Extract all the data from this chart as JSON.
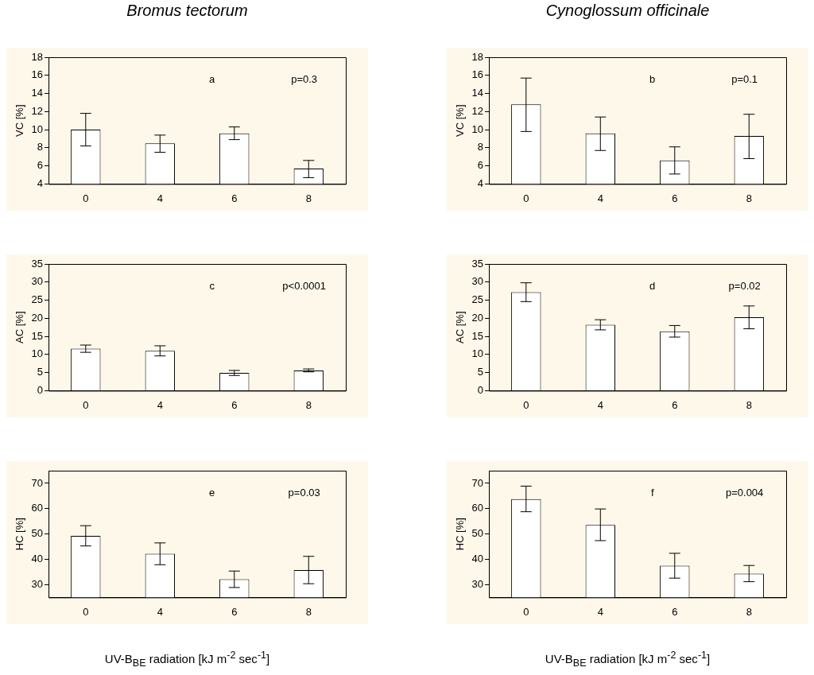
{
  "chart_data": [
    {
      "type": "bar",
      "title": "Bromus tectorum",
      "ylabel": "VC [%]",
      "categories": [
        "0",
        "4",
        "6",
        "8"
      ],
      "values": [
        10.0,
        8.5,
        9.6,
        5.7
      ],
      "errors": [
        [
          8.2,
          11.8
        ],
        [
          7.5,
          9.4
        ],
        [
          8.9,
          10.3
        ],
        [
          4.7,
          6.6
        ]
      ],
      "color": "#ffffff",
      "ylim": [
        4,
        18
      ],
      "yticks": [
        4,
        6,
        8,
        10,
        12,
        14,
        16,
        18
      ],
      "annotations": [
        "a",
        "p=0.3"
      ]
    },
    {
      "type": "bar",
      "title": "Cynoglossum officinale",
      "ylabel": "VC [%]",
      "categories": [
        "0",
        "4",
        "6",
        "8"
      ],
      "values": [
        12.8,
        9.6,
        6.6,
        9.3
      ],
      "errors": [
        [
          9.8,
          15.7
        ],
        [
          7.7,
          11.4
        ],
        [
          5.1,
          8.1
        ],
        [
          6.8,
          11.7
        ]
      ],
      "color": "#ffffff",
      "ylim": [
        4,
        18
      ],
      "yticks": [
        4,
        6,
        8,
        10,
        12,
        14,
        16,
        18
      ],
      "annotations": [
        "b",
        "p=0.1"
      ]
    },
    {
      "type": "bar",
      "ylabel": "AC [%]",
      "categories": [
        "0",
        "4",
        "6",
        "8"
      ],
      "values": [
        11.6,
        11.0,
        4.9,
        5.6
      ],
      "errors": [
        [
          10.6,
          12.6
        ],
        [
          9.6,
          12.4
        ],
        [
          4.2,
          5.6
        ],
        [
          5.2,
          6.0
        ]
      ],
      "color": "#ffffff",
      "ylim": [
        0,
        35
      ],
      "yticks": [
        0,
        5,
        10,
        15,
        20,
        25,
        30,
        35
      ],
      "annotations": [
        "c",
        "p<0.0001"
      ]
    },
    {
      "type": "bar",
      "ylabel": "AC [%]",
      "categories": [
        "0",
        "4",
        "6",
        "8"
      ],
      "values": [
        27.2,
        18.2,
        16.4,
        20.3
      ],
      "errors": [
        [
          24.6,
          29.8
        ],
        [
          16.8,
          19.6
        ],
        [
          14.8,
          18.0
        ],
        [
          17.1,
          23.4
        ]
      ],
      "color": "#ffffff",
      "ylim": [
        0,
        35
      ],
      "yticks": [
        0,
        5,
        10,
        15,
        20,
        25,
        30,
        35
      ],
      "annotations": [
        "d",
        "p=0.02"
      ]
    },
    {
      "type": "bar",
      "ylabel": "HC [%]",
      "xlabel": "UV-B$_{BE}$ radiation [kJ m$^{-2}$ sec$^{-1}$]",
      "categories": [
        "0",
        "4",
        "6",
        "8"
      ],
      "values": [
        49.3,
        42.2,
        32.2,
        35.8
      ],
      "errors": [
        [
          45.3,
          53.3
        ],
        [
          37.9,
          46.5
        ],
        [
          28.9,
          35.4
        ],
        [
          30.4,
          41.2
        ]
      ],
      "color": "#ffffff",
      "ylim": [
        25,
        75
      ],
      "yticks": [
        30,
        40,
        50,
        60,
        70
      ],
      "annotations": [
        "e",
        "p=0.03"
      ]
    },
    {
      "type": "bar",
      "ylabel": "HC [%]",
      "xlabel": "UV-B$_{BE}$ radiation [kJ m$^{-2}$ sec$^{-1}$]",
      "categories": [
        "0",
        "4",
        "6",
        "8"
      ],
      "values": [
        63.8,
        53.6,
        37.5,
        34.4
      ],
      "errors": [
        [
          58.8,
          68.9
        ],
        [
          47.4,
          59.9
        ],
        [
          32.6,
          42.4
        ],
        [
          31.2,
          37.6
        ]
      ],
      "color": "#ffffff",
      "ylim": [
        25,
        75
      ],
      "yticks": [
        30,
        40,
        50,
        60,
        70
      ],
      "annotations": [
        "f",
        "p=0.004"
      ]
    }
  ]
}
